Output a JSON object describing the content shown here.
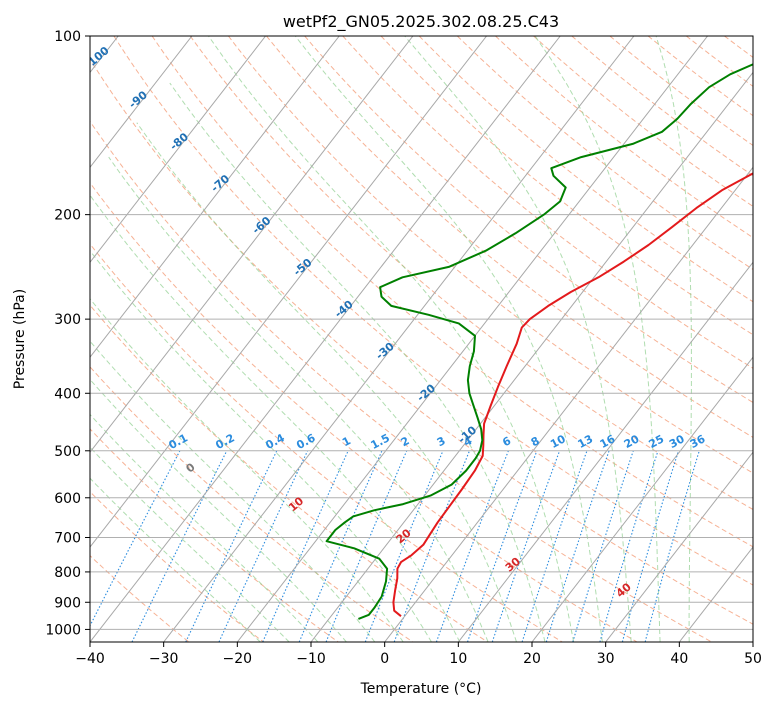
{
  "chart_data": {
    "type": "line",
    "title": "wetPf2_GN05.2025.302.08.25.C43",
    "xlabel": "Temperature (°C)",
    "ylabel": "Pressure (hPa)",
    "xlim": [
      -40,
      50
    ],
    "ylim": [
      1050,
      100
    ],
    "y_scale": "log",
    "x_ticks": [
      -40,
      -30,
      -20,
      -10,
      0,
      10,
      20,
      30,
      40,
      50
    ],
    "y_ticks": [
      100,
      200,
      300,
      400,
      500,
      600,
      700,
      800,
      900,
      1000
    ],
    "grid": true,
    "series": [
      {
        "role": "temperature",
        "color": "#e31a1c",
        "points": [
          [
            -0.5,
            950
          ],
          [
            -2,
            930
          ],
          [
            -3,
            900
          ],
          [
            -4,
            860
          ],
          [
            -5,
            820
          ],
          [
            -6,
            790
          ],
          [
            -6.2,
            770
          ],
          [
            -5.5,
            750
          ],
          [
            -5,
            720
          ],
          [
            -5.2,
            690
          ],
          [
            -5.4,
            660
          ],
          [
            -5.5,
            620
          ],
          [
            -5.6,
            580
          ],
          [
            -5.8,
            540
          ],
          [
            -6.3,
            510
          ],
          [
            -7.3,
            490
          ],
          [
            -8.4,
            470
          ],
          [
            -9.5,
            450
          ],
          [
            -10.5,
            420
          ],
          [
            -11.5,
            390
          ],
          [
            -12.5,
            360
          ],
          [
            -13.5,
            330
          ],
          [
            -14.5,
            310
          ],
          [
            -14.3,
            300
          ],
          [
            -13.2,
            285
          ],
          [
            -11.6,
            270
          ],
          [
            -9.4,
            255
          ],
          [
            -7.6,
            240
          ],
          [
            -6,
            225
          ],
          [
            -4.7,
            210
          ],
          [
            -3.4,
            195
          ],
          [
            -1.8,
            182
          ],
          [
            0.7,
            170
          ],
          [
            3.9,
            160
          ],
          [
            7.1,
            150
          ],
          [
            9.6,
            140
          ],
          [
            11.9,
            130
          ],
          [
            14.8,
            120
          ],
          [
            20.1,
            111
          ],
          [
            28,
            105
          ],
          [
            35,
            100
          ]
        ]
      },
      {
        "role": "dewpoint",
        "color": "#008000",
        "points": [
          [
            -6,
            960
          ],
          [
            -5,
            945
          ],
          [
            -5,
            920
          ],
          [
            -5.2,
            880
          ],
          [
            -6.2,
            830
          ],
          [
            -7.4,
            790
          ],
          [
            -9.5,
            760
          ],
          [
            -14,
            730
          ],
          [
            -18.5,
            710
          ],
          [
            -18.5,
            680
          ],
          [
            -18,
            660
          ],
          [
            -17.5,
            645
          ],
          [
            -15.3,
            630
          ],
          [
            -12,
            615
          ],
          [
            -9.2,
            595
          ],
          [
            -7.5,
            570
          ],
          [
            -7,
            540
          ],
          [
            -7,
            515
          ],
          [
            -7.2,
            500
          ],
          [
            -8,
            480
          ],
          [
            -9.3,
            460
          ],
          [
            -11,
            440
          ],
          [
            -12.8,
            420
          ],
          [
            -14.7,
            400
          ],
          [
            -16.3,
            380
          ],
          [
            -17.5,
            360
          ],
          [
            -18.5,
            340
          ],
          [
            -20,
            320
          ],
          [
            -23.5,
            305
          ],
          [
            -28.5,
            295
          ],
          [
            -34.5,
            285
          ],
          [
            -36.8,
            275
          ],
          [
            -38,
            265
          ],
          [
            -36,
            255
          ],
          [
            -30.8,
            245
          ],
          [
            -27.5,
            230
          ],
          [
            -25.3,
            215
          ],
          [
            -23.4,
            200
          ],
          [
            -22.6,
            190
          ],
          [
            -23.3,
            180
          ],
          [
            -26.2,
            172
          ],
          [
            -27.3,
            167
          ],
          [
            -24.4,
            160
          ],
          [
            -18.8,
            152
          ],
          [
            -16.1,
            145
          ],
          [
            -15.4,
            138
          ],
          [
            -15.1,
            130
          ],
          [
            -14.4,
            122
          ],
          [
            -12.9,
            116
          ],
          [
            -10.1,
            110
          ],
          [
            -6.4,
            105
          ],
          [
            -3.1,
            100
          ]
        ]
      }
    ],
    "background_lines": {
      "dry_adiabats": "dashed, color #f4a582",
      "moist_adiabats": "dashed, color #8fcf8f",
      "isotherms": "skewed gray lines",
      "mixing_ratio": "dotted, color #2b8cde"
    },
    "isotherm_labels": [
      "-100",
      "-90",
      "-80",
      "-70",
      "-60",
      "-50",
      "-40",
      "-30",
      "-20",
      "-10"
    ],
    "mixing_ratio_labels": [
      "0.1",
      "0.2",
      "0.4",
      "0.6",
      "1",
      "1.5",
      "2",
      "3",
      "4",
      "6",
      "8",
      "10",
      "13",
      "16",
      "20",
      "25",
      "30",
      "36"
    ],
    "dry_adiabat_labels": [
      "0",
      "10",
      "20",
      "30",
      "40"
    ]
  }
}
